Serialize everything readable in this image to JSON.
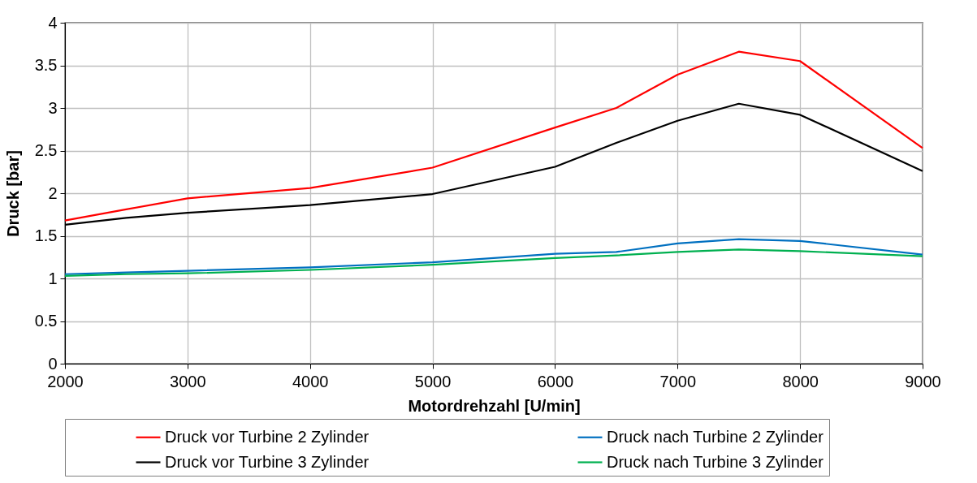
{
  "chart_data": {
    "type": "line",
    "xlabel": "Motordrehzahl [U/min]",
    "ylabel": "Druck [bar]",
    "xlim": [
      2000,
      9000
    ],
    "xticks": [
      2000,
      3000,
      4000,
      5000,
      6000,
      7000,
      8000,
      9000
    ],
    "ylim": [
      0,
      4
    ],
    "yticks": [
      0,
      0.5,
      1,
      1.5,
      2,
      2.5,
      3,
      3.5,
      4
    ],
    "grid": true,
    "legend": "bottom",
    "marker": "none",
    "line_style": "solid",
    "x": [
      2000,
      2500,
      3000,
      4000,
      5000,
      6000,
      6500,
      7000,
      7500,
      8000,
      9000
    ],
    "series": [
      {
        "name": "Druck vor Turbine 2 Zylinder",
        "color": "#ff0000",
        "values": [
          1.68,
          1.81,
          1.94,
          2.06,
          2.3,
          2.77,
          3.0,
          3.39,
          3.66,
          3.55,
          2.53
        ]
      },
      {
        "name": "Druck nach Turbine 2 Zylinder",
        "color": "#0070c0",
        "values": [
          1.05,
          1.07,
          1.09,
          1.13,
          1.19,
          1.29,
          1.31,
          1.41,
          1.46,
          1.44,
          1.28
        ]
      },
      {
        "name": "Druck vor Turbine 3 Zylinder",
        "color": "#000000",
        "values": [
          1.63,
          1.71,
          1.77,
          1.86,
          1.99,
          2.31,
          2.59,
          2.85,
          3.05,
          2.92,
          2.26
        ]
      },
      {
        "name": "Druck nach Turbine 3 Zylinder",
        "color": "#00b050",
        "values": [
          1.03,
          1.05,
          1.06,
          1.1,
          1.16,
          1.24,
          1.27,
          1.31,
          1.34,
          1.32,
          1.26
        ]
      }
    ]
  }
}
